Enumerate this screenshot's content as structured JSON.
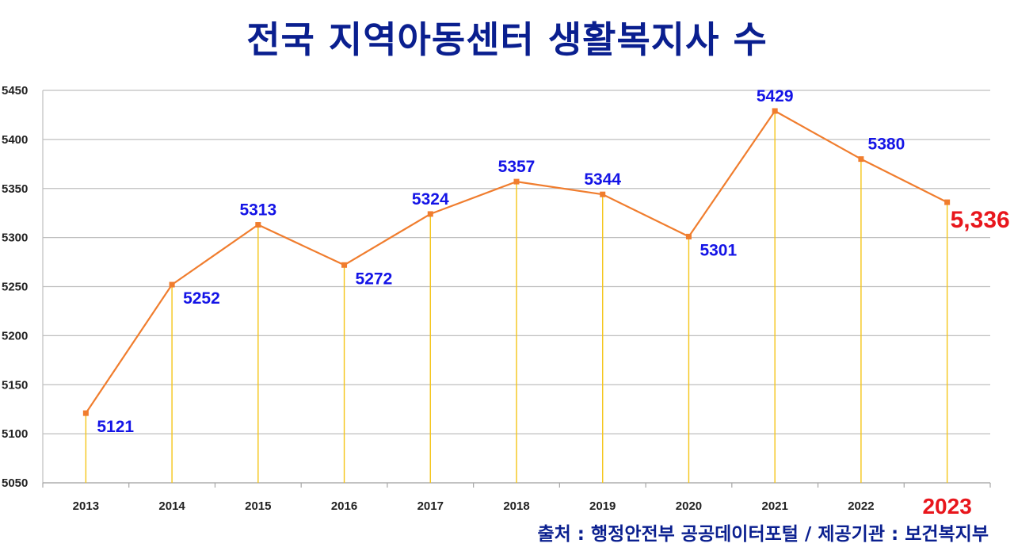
{
  "chart_data": {
    "type": "line",
    "title": "전국 지역아동센터 생활복지사 수",
    "categories": [
      "2013",
      "2014",
      "2015",
      "2016",
      "2017",
      "2018",
      "2019",
      "2020",
      "2021",
      "2022",
      "2023"
    ],
    "series": [
      {
        "values": [
          5121,
          5252,
          5313,
          5272,
          5324,
          5357,
          5344,
          5301,
          5429,
          5380,
          5336
        ],
        "labels": [
          "5121",
          "5252",
          "5313",
          "5272",
          "5324",
          "5357",
          "5344",
          "5301",
          "5429",
          "5380",
          "5,336"
        ]
      }
    ],
    "ylim": [
      5050,
      5450
    ],
    "yticks": [
      5050,
      5100,
      5150,
      5200,
      5250,
      5300,
      5350,
      5400,
      5450
    ],
    "xlabel": "",
    "ylabel": "",
    "grid": true,
    "highlight_category": "2023",
    "colors": {
      "line": "#f07d2e",
      "marker": "#f07d2e",
      "drop_line": "#f5c518",
      "data_label": "#1414e6",
      "highlight": "#e8161c",
      "title": "#0a1f8f",
      "grid": "#bfbfbf"
    }
  },
  "source_text": "출처 : 행정안전부 공공데이터포털 / 제공기관 : 보건복지부"
}
